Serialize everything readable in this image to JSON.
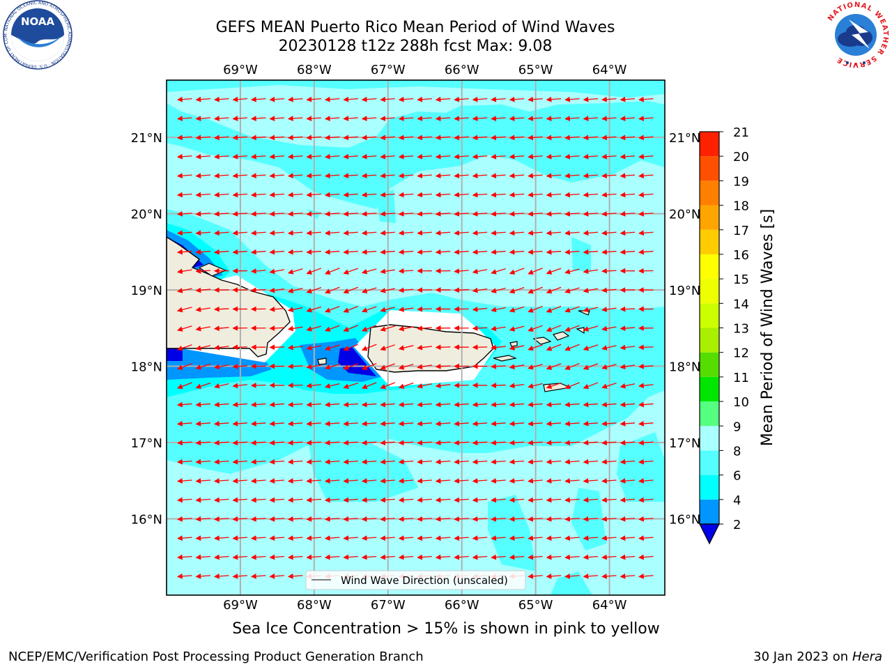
{
  "header": {
    "title_line1": "GEFS MEAN Puerto Rico Mean Period of Wind Waves",
    "title_line2": "20230128 t12z 288h fcst   Max: 9.08"
  },
  "logos": {
    "noaa_text": "NOAA",
    "noaa_ring_text": "NATIONAL OCEANIC AND ATMOSPHERIC ADMINISTRATION · U.S. DEPARTMENT OF COMMERCE",
    "nws_ring_text": "NATIONAL WEATHER SERVICE"
  },
  "chart_data": {
    "type": "heatmap",
    "title": "GEFS MEAN Puerto Rico Mean Period of Wind Waves",
    "subtitle": "20230128 t12z 288h fcst   Max: 9.08",
    "x_axis": {
      "min": -70.0,
      "max": -63.25,
      "tick_values": [
        -69,
        -68,
        -67,
        -66,
        -65,
        -64
      ],
      "tick_labels": [
        "69°W",
        "68°W",
        "67°W",
        "66°W",
        "65°W",
        "64°W"
      ]
    },
    "y_axis": {
      "min": 15.0,
      "max": 21.75,
      "tick_values": [
        16,
        17,
        18,
        19,
        20,
        21
      ],
      "tick_labels": [
        "16°N",
        "17°N",
        "18°N",
        "19°N",
        "20°N",
        "21°N"
      ]
    },
    "grid": true,
    "colorbar": {
      "label": "Mean Period of Wind Waves [s]",
      "levels": [
        2,
        4,
        6,
        8,
        9,
        10,
        11,
        12,
        13,
        14,
        15,
        16,
        17,
        18,
        19,
        20,
        21
      ],
      "colors": [
        "#0000e6",
        "#0096ff",
        "#00ffff",
        "#55ffff",
        "#aaffff",
        "#55ff80",
        "#00e600",
        "#55dd00",
        "#aaee00",
        "#ccff00",
        "#eeff00",
        "#ffff00",
        "#ffcc00",
        "#ffa500",
        "#ff8000",
        "#ff5000",
        "#ff2000",
        "#ff0000"
      ],
      "extend": "min"
    },
    "field_summary": {
      "background_level": "8-9",
      "band_levels": "6-8",
      "min_near_coast": "2-4",
      "max": 9.08
    },
    "vectors": {
      "label": "Wind Wave Direction (unscaled)",
      "color": "#ff0000",
      "dominant_direction": "toward west",
      "lon_step": 0.25,
      "lat_step": 0.25
    },
    "legend": {
      "placement": "lower center",
      "entry": "Wind Wave Direction (unscaled)"
    }
  },
  "caption": "Sea Ice Concentration > 15% is shown in pink to yellow",
  "footer": {
    "left": "NCEP/EMC/Verification Post Processing Product Generation Branch",
    "right_prefix": "30 Jan 2023 on ",
    "right_machine": "Hera"
  }
}
